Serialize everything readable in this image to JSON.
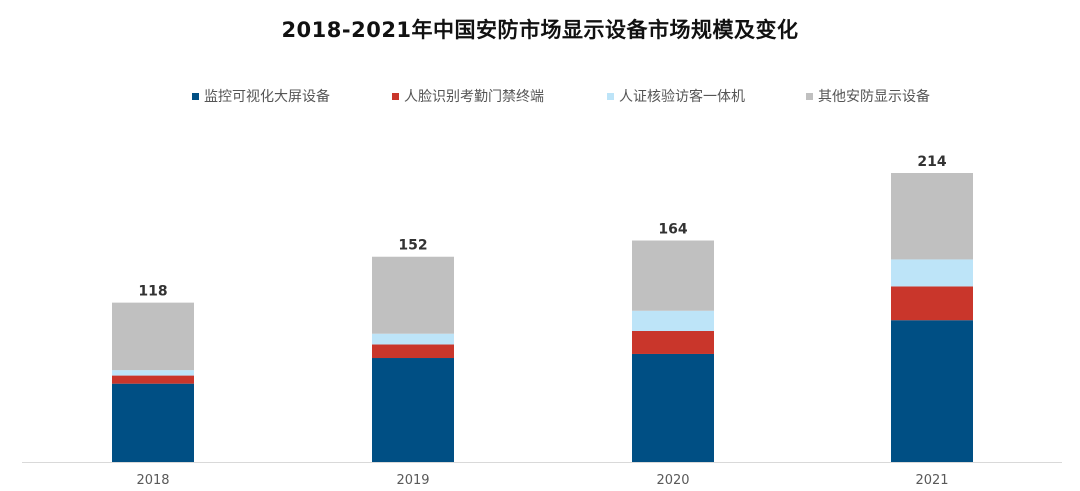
{
  "title": "2018-2021年中国安防市场显示设备市场规模及变化",
  "colors": {
    "series": [
      "#004F84",
      "#C9362B",
      "#BDE4F8",
      "#C0C0C0"
    ],
    "axis": "#D9D9D9"
  },
  "chart_data": {
    "type": "bar",
    "stacked": true,
    "title": "2018-2021年中国安防市场显示设备市场规模及变化",
    "categories": [
      "2018",
      "2019",
      "2020",
      "2021"
    ],
    "totals": [
      118,
      152,
      164,
      214
    ],
    "series": [
      {
        "name": "监控可视化大屏设备",
        "values": [
          58,
          77,
          80,
          105
        ]
      },
      {
        "name": "人脸识别考勤门禁终端",
        "values": [
          6,
          10,
          17,
          25
        ]
      },
      {
        "name": "人证核验访客一体机",
        "values": [
          4,
          8,
          15,
          20
        ]
      },
      {
        "name": "其他安防显示设备",
        "values": [
          50,
          57,
          52,
          64
        ]
      }
    ],
    "ylim": [
      0,
      214
    ],
    "grid": false,
    "legend": "top",
    "xlabel": "",
    "ylabel": ""
  }
}
